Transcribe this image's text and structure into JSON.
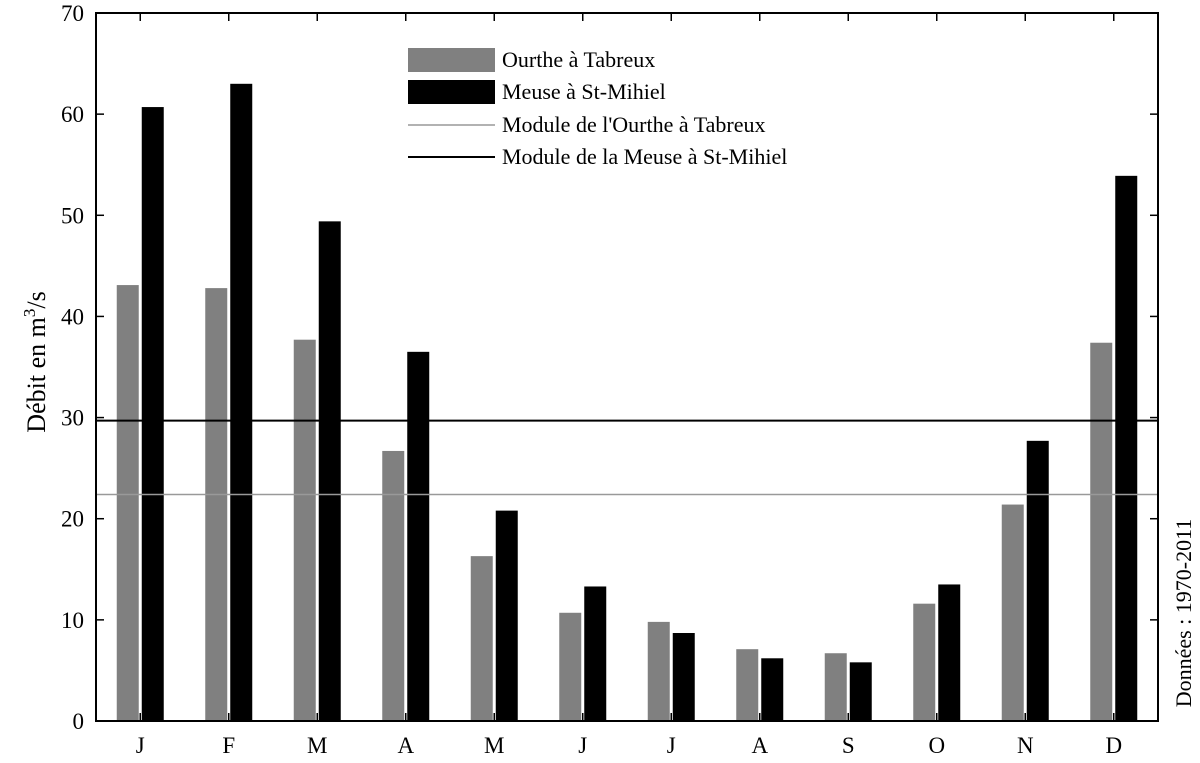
{
  "chart_data": {
    "type": "bar",
    "categories": [
      "J",
      "F",
      "M",
      "A",
      "M",
      "J",
      "J",
      "A",
      "S",
      "O",
      "N",
      "D"
    ],
    "series": [
      {
        "name": "Ourthe à Tabreux",
        "color": "#808080",
        "values": [
          43.1,
          42.8,
          37.7,
          26.7,
          16.3,
          10.7,
          9.8,
          7.1,
          6.7,
          11.6,
          21.4,
          37.4
        ]
      },
      {
        "name": "Meuse à St-Mihiel",
        "color": "#000000",
        "values": [
          60.7,
          63.0,
          49.4,
          36.5,
          20.8,
          13.3,
          8.7,
          6.2,
          5.8,
          13.5,
          27.7,
          53.9
        ]
      }
    ],
    "reference_lines": [
      {
        "name": "Module de l'Ourthe à Tabreux",
        "value": 22.4,
        "color": "#999999"
      },
      {
        "name": "Module de la Meuse à St-Mihiel",
        "value": 29.7,
        "color": "#000000"
      }
    ],
    "ylabel": {
      "main": "Débit en m",
      "sup": "3",
      "tail": "/s"
    },
    "ylim": [
      0,
      70
    ],
    "yticks": [
      0,
      10,
      20,
      30,
      40,
      50,
      60,
      70
    ],
    "legend_position": "top-center",
    "grid": false,
    "note": "Données : 1970-2011"
  }
}
